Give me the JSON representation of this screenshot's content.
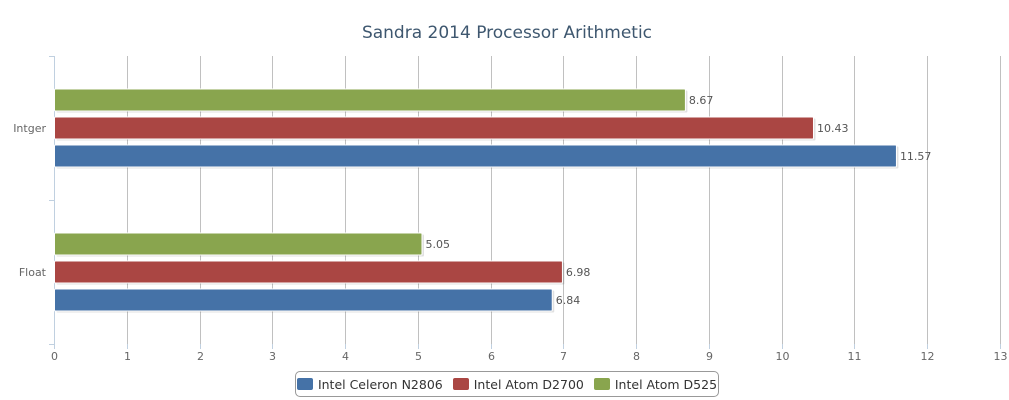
{
  "chart_data": {
    "type": "bar",
    "orientation": "horizontal",
    "title": "Sandra 2014 Processor Arithmetic",
    "categories": [
      "Intger",
      "Float"
    ],
    "series": [
      {
        "name": "Intel Atom D525",
        "color": "#89a54e",
        "values": [
          8.67,
          5.05
        ],
        "labels": [
          "8.67",
          "5.05"
        ]
      },
      {
        "name": "Intel Atom D2700",
        "color": "#aa4643",
        "values": [
          10.43,
          6.98
        ],
        "labels": [
          "10.43",
          "6.98"
        ]
      },
      {
        "name": "Intel Celeron N2806",
        "color": "#4572a7",
        "values": [
          11.57,
          6.84
        ],
        "labels": [
          "11.57",
          "6.84"
        ]
      }
    ],
    "xlim": [
      0,
      13
    ],
    "xticks": [
      "0",
      "1",
      "2",
      "3",
      "4",
      "5",
      "6",
      "7",
      "8",
      "9",
      "10",
      "11",
      "12",
      "13"
    ],
    "grid": true,
    "legend": {
      "placement": "bottom",
      "order": [
        "Intel Celeron N2806",
        "Intel Atom D2700",
        "Intel Atom D525"
      ]
    }
  }
}
